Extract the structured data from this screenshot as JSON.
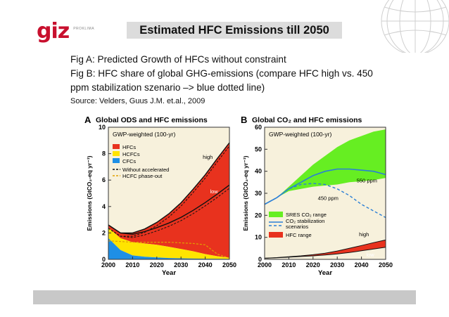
{
  "header": {
    "logo_text": "giz",
    "logo_sub": "PROKLIMA",
    "title": "Estimated HFC Emissions till 2050"
  },
  "captions": {
    "fig_a": "Fig A: Predicted Growth of HFCs without constraint",
    "fig_b_line1": "Fig B: HFC share of global GHG-emissions (compare HFC high vs. 450",
    "fig_b_line2": "ppm stabilization szenario –> blue dotted line)",
    "source": "Source: Velders, Guus J.M. et.al., 2009"
  },
  "colors": {
    "hfc": "#e8321e",
    "hcfc": "#ffe400",
    "cfc": "#1e8fe6",
    "sres": "#66ee22",
    "co2_line": "#2a7fd6",
    "panel_bg": "#f7f1dc"
  },
  "chart_data": [
    {
      "type": "area",
      "panel_letter": "A",
      "title": "Global ODS and HFC emissions",
      "subtitle": "GWP-weighted (100-yr)",
      "xlabel": "Year",
      "ylabel": "Emissions (GtCO₂-eq yr⁻¹)",
      "xlim": [
        2000,
        2050
      ],
      "ylim": [
        0,
        10
      ],
      "x_ticks": [
        2000,
        2010,
        2020,
        2030,
        2040,
        2050
      ],
      "y_ticks": [
        0,
        2,
        4,
        6,
        8,
        10
      ],
      "legend": {
        "position": "top-left",
        "entries": [
          "HFCs",
          "HCFCs",
          "CFCs",
          "Without accelerated",
          "HCFC phase-out"
        ]
      },
      "annotations": [
        "high",
        "low"
      ],
      "x": [
        2000,
        2005,
        2010,
        2015,
        2020,
        2025,
        2030,
        2035,
        2040,
        2045,
        2050
      ],
      "series": [
        {
          "name": "CFCs",
          "values": [
            1.6,
            0.7,
            0.3,
            0.2,
            0.15,
            0.1,
            0.08,
            0.06,
            0.05,
            0.04,
            0.03
          ]
        },
        {
          "name": "HCFCs",
          "values": [
            0.8,
            0.9,
            1.0,
            1.0,
            0.95,
            0.85,
            0.7,
            0.55,
            0.35,
            0.2,
            0.1
          ]
        },
        {
          "name": "HFCs high",
          "values": [
            0.2,
            0.4,
            0.7,
            1.1,
            1.7,
            2.5,
            3.5,
            4.7,
            6.0,
            7.4,
            8.7
          ]
        },
        {
          "name": "HFCs low",
          "values": [
            0.2,
            0.4,
            0.6,
            0.9,
            1.3,
            1.8,
            2.4,
            3.1,
            3.9,
            4.7,
            5.5
          ]
        }
      ],
      "dashed_hcfc_phaseout": [
        1.4,
        1.35,
        1.3,
        1.3,
        1.3,
        1.3,
        1.25,
        1.2,
        1.1,
        0.4,
        0.1
      ]
    },
    {
      "type": "area",
      "panel_letter": "B",
      "title": "Global CO₂ and HFC emissions",
      "subtitle": "GWP-weighted (100-yr)",
      "xlabel": "Year",
      "ylabel": "Emissions (GtCO₂-eq yr⁻¹)",
      "xlim": [
        2000,
        2050
      ],
      "ylim": [
        0,
        60
      ],
      "x_ticks": [
        2000,
        2010,
        2020,
        2030,
        2040,
        2050
      ],
      "y_ticks": [
        0,
        10,
        20,
        30,
        40,
        50,
        60
      ],
      "legend": {
        "position": "bottom-left",
        "entries": [
          "SRES CO₂ range",
          "CO₂ stabilization",
          "scenarios",
          "HFC range"
        ]
      },
      "annotations": [
        "550 ppm",
        "450 ppm",
        "high",
        "low"
      ],
      "x": [
        2000,
        2005,
        2010,
        2015,
        2020,
        2025,
        2030,
        2035,
        2040,
        2045,
        2050
      ],
      "sres_upper": [
        25,
        28,
        33,
        38,
        43,
        47,
        51,
        54,
        56,
        58,
        59
      ],
      "sres_lower": [
        25,
        28,
        31,
        32,
        33,
        33.5,
        34,
        35,
        35.5,
        36,
        37
      ],
      "co2_550ppm": [
        25,
        28,
        32,
        35,
        38,
        40,
        41,
        41,
        40.5,
        40,
        38.5
      ],
      "co2_450ppm": [
        25,
        28,
        32,
        34,
        34.5,
        34,
        32,
        29,
        25,
        22,
        19
      ],
      "hfc_high": [
        0.5,
        0.8,
        1.2,
        1.6,
        2.1,
        2.8,
        3.8,
        5.0,
        6.3,
        7.6,
        8.8
      ],
      "hfc_low": [
        0.5,
        0.7,
        1.0,
        1.3,
        1.6,
        2.0,
        2.5,
        3.1,
        3.9,
        4.7,
        5.5
      ]
    }
  ]
}
